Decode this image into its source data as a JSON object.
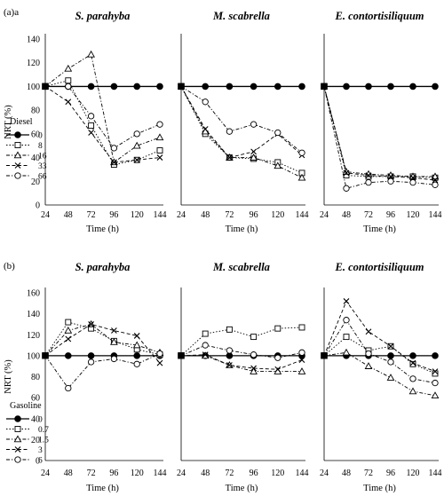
{
  "panel_labels": [
    "(a)a",
    "(b)"
  ],
  "chart_data": [
    {
      "type": "line",
      "group": "a",
      "title": "S. parahyba",
      "xlabel": "Time (h)",
      "ylabel": "NRT (%)",
      "x": [
        24,
        48,
        72,
        96,
        120,
        144
      ],
      "xticks": [
        "24",
        "48",
        "72",
        "96",
        "120",
        "144"
      ],
      "ylim": [
        0,
        140
      ],
      "yticks": [
        "0",
        "20",
        "40",
        "60",
        "80",
        "100",
        "120",
        "140"
      ],
      "legend": {
        "title": "Diesel",
        "position": "left-middle"
      },
      "series": [
        {
          "name": "0",
          "marker": "circle-filled",
          "dash": "solid",
          "values": [
            100,
            100,
            100,
            100,
            100,
            100
          ]
        },
        {
          "name": "8",
          "marker": "square-open",
          "dash": "dotted",
          "values": [
            100,
            105,
            67,
            34,
            38,
            46
          ]
        },
        {
          "name": "16",
          "marker": "triangle-open",
          "dash": "dashdot",
          "values": [
            100,
            115,
            127,
            36,
            50,
            57
          ]
        },
        {
          "name": "33",
          "marker": "x",
          "dash": "dashed",
          "values": [
            100,
            87,
            61,
            36,
            38,
            40
          ]
        },
        {
          "name": "66",
          "marker": "circle-open",
          "dash": "dashdot",
          "values": [
            100,
            100,
            75,
            48,
            60,
            68
          ]
        }
      ]
    },
    {
      "type": "line",
      "group": "a",
      "title": "M. scabrella",
      "xlabel": "Time (h)",
      "x": [
        24,
        48,
        72,
        96,
        120,
        144
      ],
      "xticks": [
        "24",
        "48",
        "72",
        "96",
        "120",
        "144"
      ],
      "ylim": [
        0,
        140
      ],
      "series": [
        {
          "name": "0",
          "marker": "circle-filled",
          "dash": "solid",
          "values": [
            100,
            100,
            100,
            100,
            100,
            100
          ]
        },
        {
          "name": "8",
          "marker": "square-open",
          "dash": "dotted",
          "values": [
            100,
            60,
            40,
            39,
            36,
            27
          ]
        },
        {
          "name": "16",
          "marker": "triangle-open",
          "dash": "dashdot",
          "values": [
            100,
            62,
            40,
            40,
            33,
            23
          ]
        },
        {
          "name": "33",
          "marker": "x",
          "dash": "dashed",
          "values": [
            100,
            64,
            40,
            45,
            60,
            42
          ]
        },
        {
          "name": "66",
          "marker": "circle-open",
          "dash": "dashdot",
          "values": [
            100,
            87,
            62,
            68,
            61,
            44
          ]
        }
      ]
    },
    {
      "type": "line",
      "group": "a",
      "title": "E. contortisiliquum",
      "xlabel": "Time (h)",
      "x": [
        24,
        48,
        72,
        96,
        120,
        144
      ],
      "xticks": [
        "24",
        "48",
        "72",
        "96",
        "120",
        "144"
      ],
      "ylim": [
        0,
        140
      ],
      "series": [
        {
          "name": "0",
          "marker": "circle-filled",
          "dash": "solid",
          "values": [
            100,
            100,
            100,
            100,
            100,
            100
          ]
        },
        {
          "name": "8",
          "marker": "square-open",
          "dash": "dotted",
          "values": [
            100,
            25,
            24,
            24,
            24,
            23
          ]
        },
        {
          "name": "16",
          "marker": "triangle-open",
          "dash": "dashdot",
          "values": [
            100,
            28,
            26,
            25,
            24,
            24
          ]
        },
        {
          "name": "33",
          "marker": "x",
          "dash": "dashed",
          "values": [
            100,
            27,
            25,
            24,
            23,
            21
          ]
        },
        {
          "name": "66",
          "marker": "circle-open",
          "dash": "dashdot",
          "values": [
            100,
            14,
            19,
            20,
            19,
            17
          ]
        }
      ]
    },
    {
      "type": "line",
      "group": "b",
      "title": "S. parahyba",
      "xlabel": "Time (h)",
      "ylabel": "NRT (%)",
      "x": [
        24,
        48,
        72,
        96,
        120,
        144
      ],
      "xticks": [
        "24",
        "48",
        "72",
        "96",
        "120",
        "144"
      ],
      "ylim": [
        0,
        160
      ],
      "yticks": [
        "0",
        "20",
        "40",
        "60",
        "80",
        "100",
        "120",
        "140",
        "160"
      ],
      "legend": {
        "title": "Gasoline",
        "position": "left-bottom"
      },
      "series": [
        {
          "name": "0",
          "marker": "circle-filled",
          "dash": "solid",
          "values": [
            100,
            100,
            100,
            100,
            100,
            100
          ]
        },
        {
          "name": "0.7",
          "marker": "square-open",
          "dash": "dotted",
          "values": [
            100,
            132,
            126,
            114,
            106,
            101
          ]
        },
        {
          "name": "1.5",
          "marker": "triangle-open",
          "dash": "dashdot",
          "values": [
            100,
            124,
            130,
            113,
            110,
            103
          ]
        },
        {
          "name": "3",
          "marker": "x",
          "dash": "dashed",
          "values": [
            100,
            116,
            130,
            124,
            119,
            93
          ]
        },
        {
          "name": "6",
          "marker": "circle-open",
          "dash": "dashdot",
          "values": [
            100,
            69,
            94,
            97,
            92,
            102
          ]
        }
      ]
    },
    {
      "type": "line",
      "group": "b",
      "title": "M. scabrella",
      "xlabel": "Time (h)",
      "x": [
        24,
        48,
        72,
        96,
        120,
        144
      ],
      "xticks": [
        "24",
        "48",
        "72",
        "96",
        "120",
        "144"
      ],
      "ylim": [
        0,
        160
      ],
      "series": [
        {
          "name": "0",
          "marker": "circle-filled",
          "dash": "solid",
          "values": [
            100,
            100,
            100,
            100,
            100,
            100
          ]
        },
        {
          "name": "0.7",
          "marker": "square-open",
          "dash": "dotted",
          "values": [
            100,
            121,
            125,
            118,
            126,
            127
          ]
        },
        {
          "name": "1.5",
          "marker": "triangle-open",
          "dash": "dashdot",
          "values": [
            100,
            100,
            91,
            85,
            85,
            85
          ]
        },
        {
          "name": "3",
          "marker": "x",
          "dash": "dashed",
          "values": [
            100,
            101,
            91,
            88,
            87,
            96
          ]
        },
        {
          "name": "6",
          "marker": "circle-open",
          "dash": "dashdot",
          "values": [
            100,
            110,
            105,
            101,
            98,
            103
          ]
        }
      ]
    },
    {
      "type": "line",
      "group": "b",
      "title": "E. contortisiliquum",
      "xlabel": "Time (h)",
      "x": [
        24,
        48,
        72,
        96,
        120,
        144
      ],
      "xticks": [
        "24",
        "48",
        "72",
        "96",
        "120",
        "144"
      ],
      "ylim": [
        0,
        160
      ],
      "series": [
        {
          "name": "0",
          "marker": "circle-filled",
          "dash": "solid",
          "values": [
            100,
            100,
            100,
            100,
            100,
            100
          ]
        },
        {
          "name": "0.7",
          "marker": "square-open",
          "dash": "dotted",
          "values": [
            100,
            118,
            105,
            109,
            92,
            83
          ]
        },
        {
          "name": "1.5",
          "marker": "triangle-open",
          "dash": "dashdot",
          "values": [
            100,
            103,
            90,
            79,
            66,
            62
          ]
        },
        {
          "name": "3",
          "marker": "x",
          "dash": "dashed",
          "values": [
            100,
            152,
            123,
            109,
            93,
            85
          ]
        },
        {
          "name": "6",
          "marker": "circle-open",
          "dash": "dashdot",
          "values": [
            100,
            134,
            102,
            94,
            78,
            74
          ]
        }
      ]
    }
  ]
}
